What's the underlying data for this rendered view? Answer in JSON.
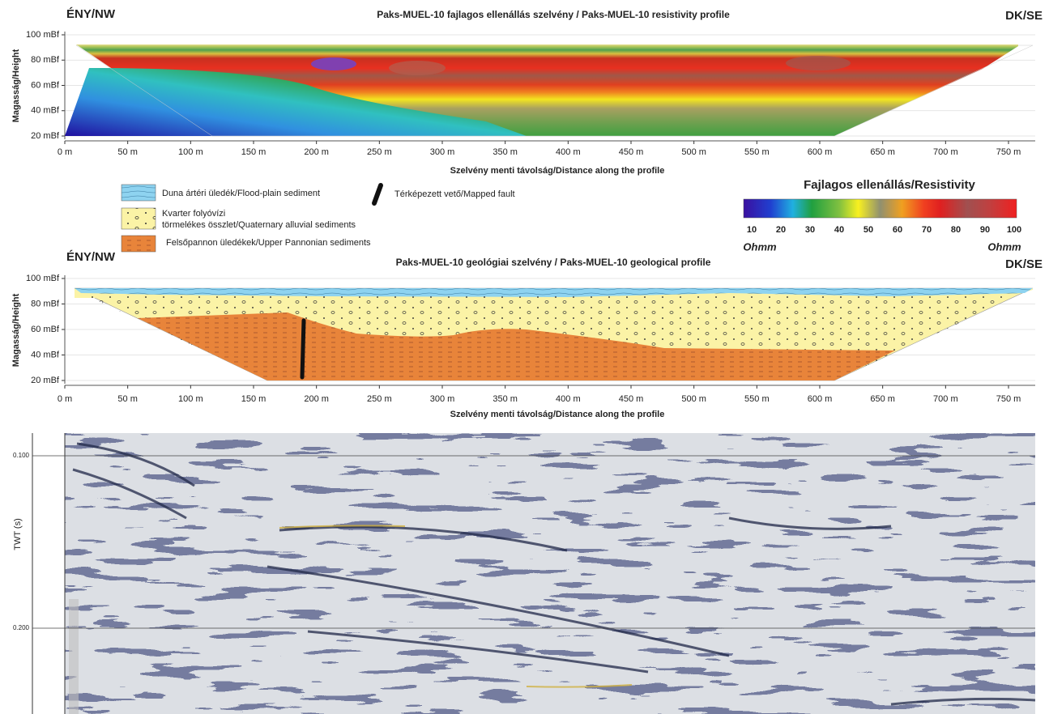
{
  "resistivity_profile": {
    "left_label": "ÉNY/NW",
    "title": "Paks-MUEL-10 fajlagos ellenállás szelvény / Paks-MUEL-10 resistivity profile",
    "right_label": "DK/SE",
    "y_axis_label": "Magasság/Height",
    "y_ticks": [
      "20 mBf",
      "40 mBf",
      "60 mBf",
      "80 mBf",
      "100 mBf"
    ],
    "x_ticks": [
      "0 m",
      "50 m",
      "100 m",
      "150 m",
      "200 m",
      "250 m",
      "300 m",
      "350 m",
      "400 m",
      "450 m",
      "500 m",
      "550 m",
      "600 m",
      "650 m",
      "700 m",
      "750 m"
    ],
    "x_axis_label": "Szelvény menti távolság/Distance along the profile"
  },
  "legend": {
    "flood_plain": "Duna ártéri üledék/Flood-plain sediment",
    "quaternary": [
      "Kvarter folyóvízi",
      "törmelékes összlet/Quaternary alluvial sediments"
    ],
    "pannonian": "Felsőpannon üledékek/Upper Pannonian sediments",
    "fault": "Térképezett vető/Mapped fault"
  },
  "colorbar": {
    "title": "Fajlagos ellenállás/Resistivity",
    "ticks": [
      10,
      20,
      30,
      40,
      50,
      60,
      70,
      80,
      90,
      100
    ],
    "unit_left": "Ohmm",
    "unit_right": "Ohmm"
  },
  "geological_profile": {
    "left_label": "ÉNY/NW",
    "title": "Paks-MUEL-10 geológiai szelvény / Paks-MUEL-10 geological profile",
    "right_label": "DK/SE",
    "y_axis_label": "Magasság/Height",
    "y_ticks": [
      "20 mBf",
      "40 mBf",
      "60 mBf",
      "80 mBf",
      "100 mBf"
    ],
    "x_ticks": [
      "0 m",
      "50 m",
      "100 m",
      "150 m",
      "200 m",
      "250 m",
      "300 m",
      "350 m",
      "400 m",
      "450 m",
      "500 m",
      "550 m",
      "600 m",
      "650 m",
      "700 m",
      "750 m"
    ],
    "x_axis_label": "Szelvény menti távolság/Distance along the profile"
  },
  "seismic_section": {
    "y_axis_label": "TWT (s)",
    "y_ticks": [
      "0.100",
      "0.200"
    ]
  }
}
